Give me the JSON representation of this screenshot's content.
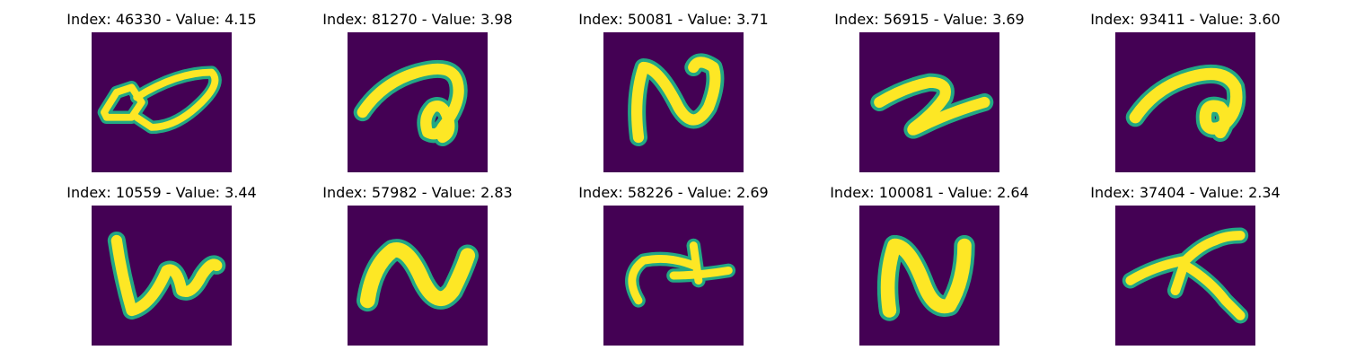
{
  "colormap": {
    "background": "#440154",
    "stroke_core": "#fde725",
    "stroke_edge": "#22a884"
  },
  "grid": [
    [
      {
        "title": "Index: 46330 - Value: 4.15",
        "icon": "handwritten-glyph-loop-icon"
      },
      {
        "title": "Index: 81270 - Value: 3.98",
        "icon": "handwritten-glyph-hook-icon"
      },
      {
        "title": "Index: 50081 - Value: 3.71",
        "icon": "handwritten-glyph-n-icon"
      },
      {
        "title": "Index: 56915 - Value: 3.69",
        "icon": "handwritten-glyph-z-icon"
      },
      {
        "title": "Index: 93411 - Value: 3.60",
        "icon": "handwritten-glyph-curl-icon"
      }
    ],
    [
      {
        "title": "Index: 10559 - Value: 3.44",
        "icon": "handwritten-glyph-w-icon"
      },
      {
        "title": "Index: 57982 - Value: 2.83",
        "icon": "handwritten-glyph-wave-icon"
      },
      {
        "title": "Index: 58226 - Value: 2.69",
        "icon": "handwritten-glyph-plus-icon"
      },
      {
        "title": "Index: 100081 - Value: 2.64",
        "icon": "handwritten-glyph-n-icon"
      },
      {
        "title": "Index: 37404 - Value: 2.34",
        "icon": "handwritten-glyph-cross-icon"
      }
    ]
  ]
}
